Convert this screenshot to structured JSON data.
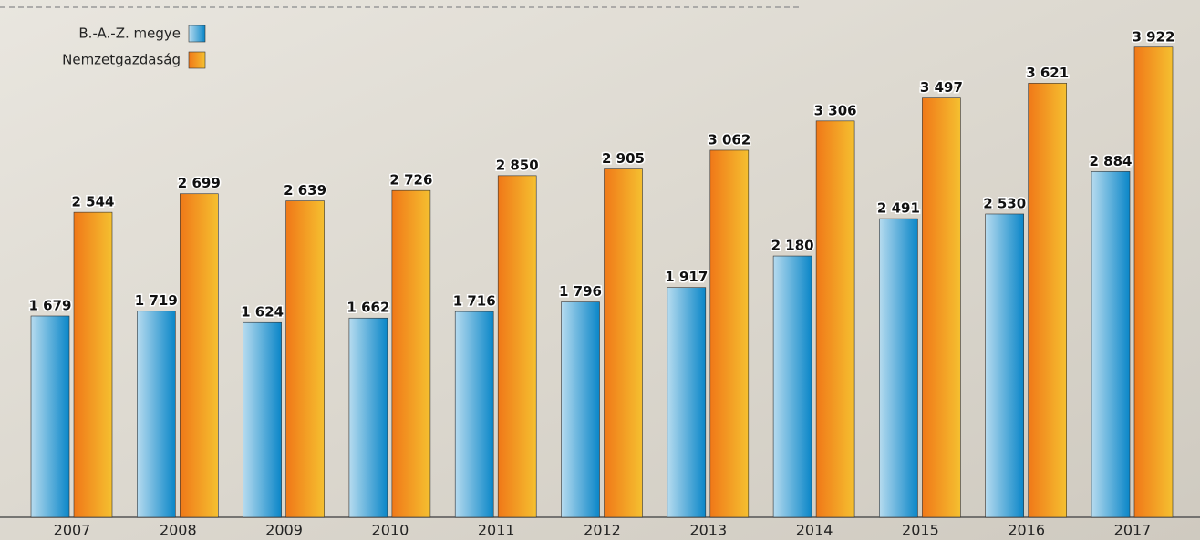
{
  "chart_data": {
    "type": "bar",
    "categories": [
      "2007",
      "2008",
      "2009",
      "2010",
      "2011",
      "2012",
      "2013",
      "2014",
      "2015",
      "2016",
      "2017"
    ],
    "series": [
      {
        "name": "B.-A.-Z. megye",
        "color": "#0a86c8",
        "values": [
          1679,
          1719,
          1624,
          1662,
          1716,
          1796,
          1917,
          2180,
          2491,
          2530,
          2884
        ],
        "value_labels": [
          "1 679",
          "1 719",
          "1 624",
          "1 662",
          "1 716",
          "1 796",
          "1 917",
          "2 180",
          "2 491",
          "2 530",
          "2 884"
        ]
      },
      {
        "name": "Nemzetgazdaság",
        "color": "#f07818",
        "values": [
          2544,
          2699,
          2639,
          2726,
          2850,
          2905,
          3062,
          3306,
          3497,
          3621,
          3922
        ],
        "value_labels": [
          "2 544",
          "2 699",
          "2 639",
          "2 726",
          "2 850",
          "2 905",
          "3 062",
          "3 306",
          "3 497",
          "3 621",
          "3 922"
        ]
      }
    ],
    "ylim": [
      0,
      4300
    ]
  }
}
